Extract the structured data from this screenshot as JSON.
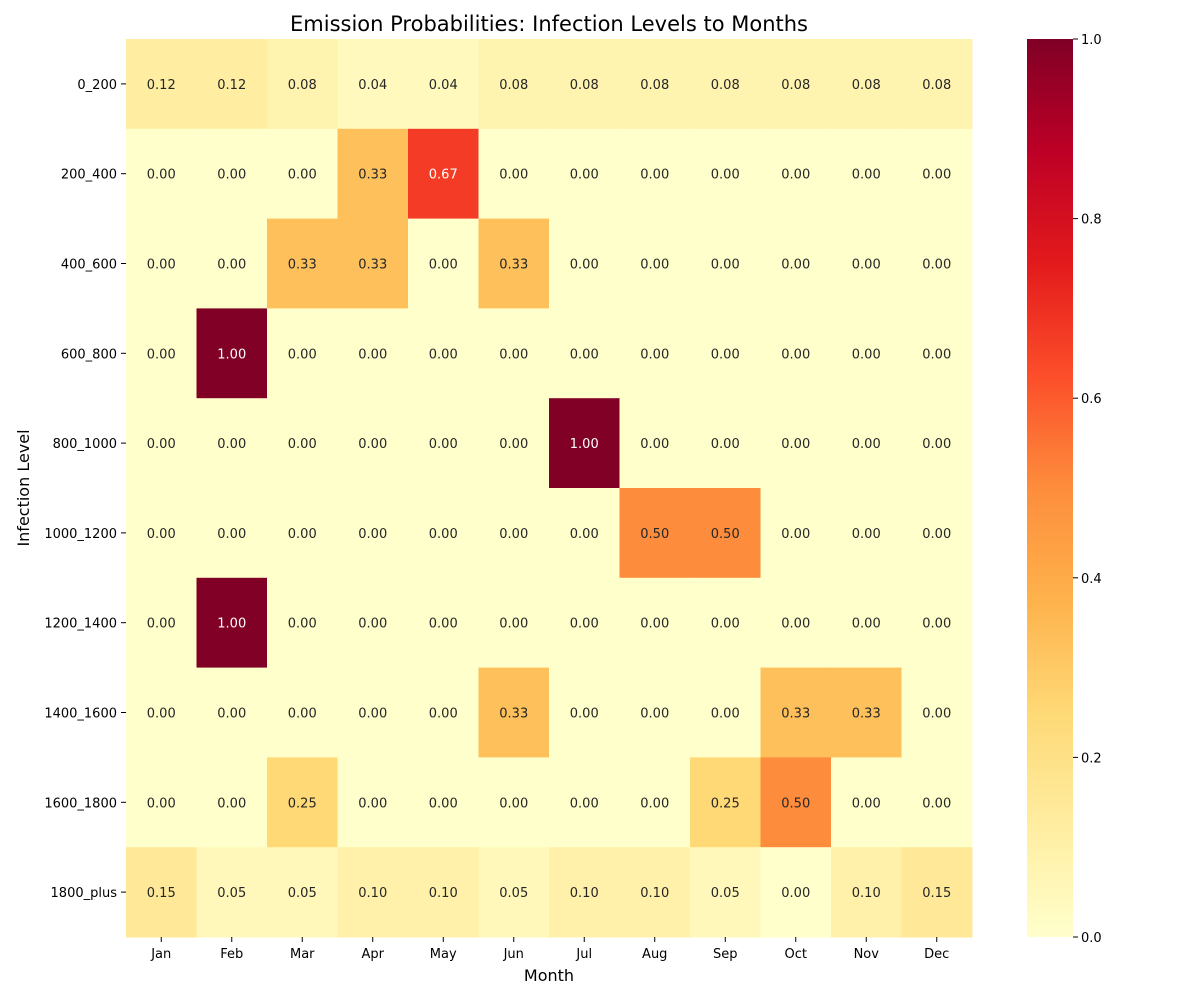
{
  "chart_data": {
    "type": "heatmap",
    "title": "Emission Probabilities: Infection Levels to Months",
    "xlabel": "Month",
    "ylabel": "Infection Level",
    "columns": [
      "Jan",
      "Feb",
      "Mar",
      "Apr",
      "May",
      "Jun",
      "Jul",
      "Aug",
      "Sep",
      "Oct",
      "Nov",
      "Dec"
    ],
    "rows": [
      "0_200",
      "200_400",
      "400_600",
      "600_800",
      "800_1000",
      "1000_1200",
      "1200_1400",
      "1400_1600",
      "1600_1800",
      "1800_plus"
    ],
    "values": [
      [
        0.12,
        0.12,
        0.08,
        0.04,
        0.04,
        0.08,
        0.08,
        0.08,
        0.08,
        0.08,
        0.08,
        0.08
      ],
      [
        0.0,
        0.0,
        0.0,
        0.33,
        0.67,
        0.0,
        0.0,
        0.0,
        0.0,
        0.0,
        0.0,
        0.0
      ],
      [
        0.0,
        0.0,
        0.33,
        0.33,
        0.0,
        0.33,
        0.0,
        0.0,
        0.0,
        0.0,
        0.0,
        0.0
      ],
      [
        0.0,
        1.0,
        0.0,
        0.0,
        0.0,
        0.0,
        0.0,
        0.0,
        0.0,
        0.0,
        0.0,
        0.0
      ],
      [
        0.0,
        0.0,
        0.0,
        0.0,
        0.0,
        0.0,
        1.0,
        0.0,
        0.0,
        0.0,
        0.0,
        0.0
      ],
      [
        0.0,
        0.0,
        0.0,
        0.0,
        0.0,
        0.0,
        0.0,
        0.5,
        0.5,
        0.0,
        0.0,
        0.0
      ],
      [
        0.0,
        1.0,
        0.0,
        0.0,
        0.0,
        0.0,
        0.0,
        0.0,
        0.0,
        0.0,
        0.0,
        0.0
      ],
      [
        0.0,
        0.0,
        0.0,
        0.0,
        0.0,
        0.33,
        0.0,
        0.0,
        0.0,
        0.33,
        0.33,
        0.0
      ],
      [
        0.0,
        0.0,
        0.25,
        0.0,
        0.0,
        0.0,
        0.0,
        0.0,
        0.25,
        0.5,
        0.0,
        0.0
      ],
      [
        0.15,
        0.05,
        0.05,
        0.1,
        0.1,
        0.05,
        0.1,
        0.1,
        0.05,
        0.0,
        0.1,
        0.15
      ]
    ],
    "value_format": "0.00",
    "colormap": "YlOrRd",
    "colorbar": {
      "range": [
        0,
        1.0
      ],
      "ticks": [
        "0.0",
        "0.2",
        "0.4",
        "0.6",
        "0.8",
        "1.0"
      ]
    },
    "grid": false,
    "legend": "colorbar-right",
    "text_color_light": "#ffffff",
    "text_color_dark": "#262626"
  }
}
